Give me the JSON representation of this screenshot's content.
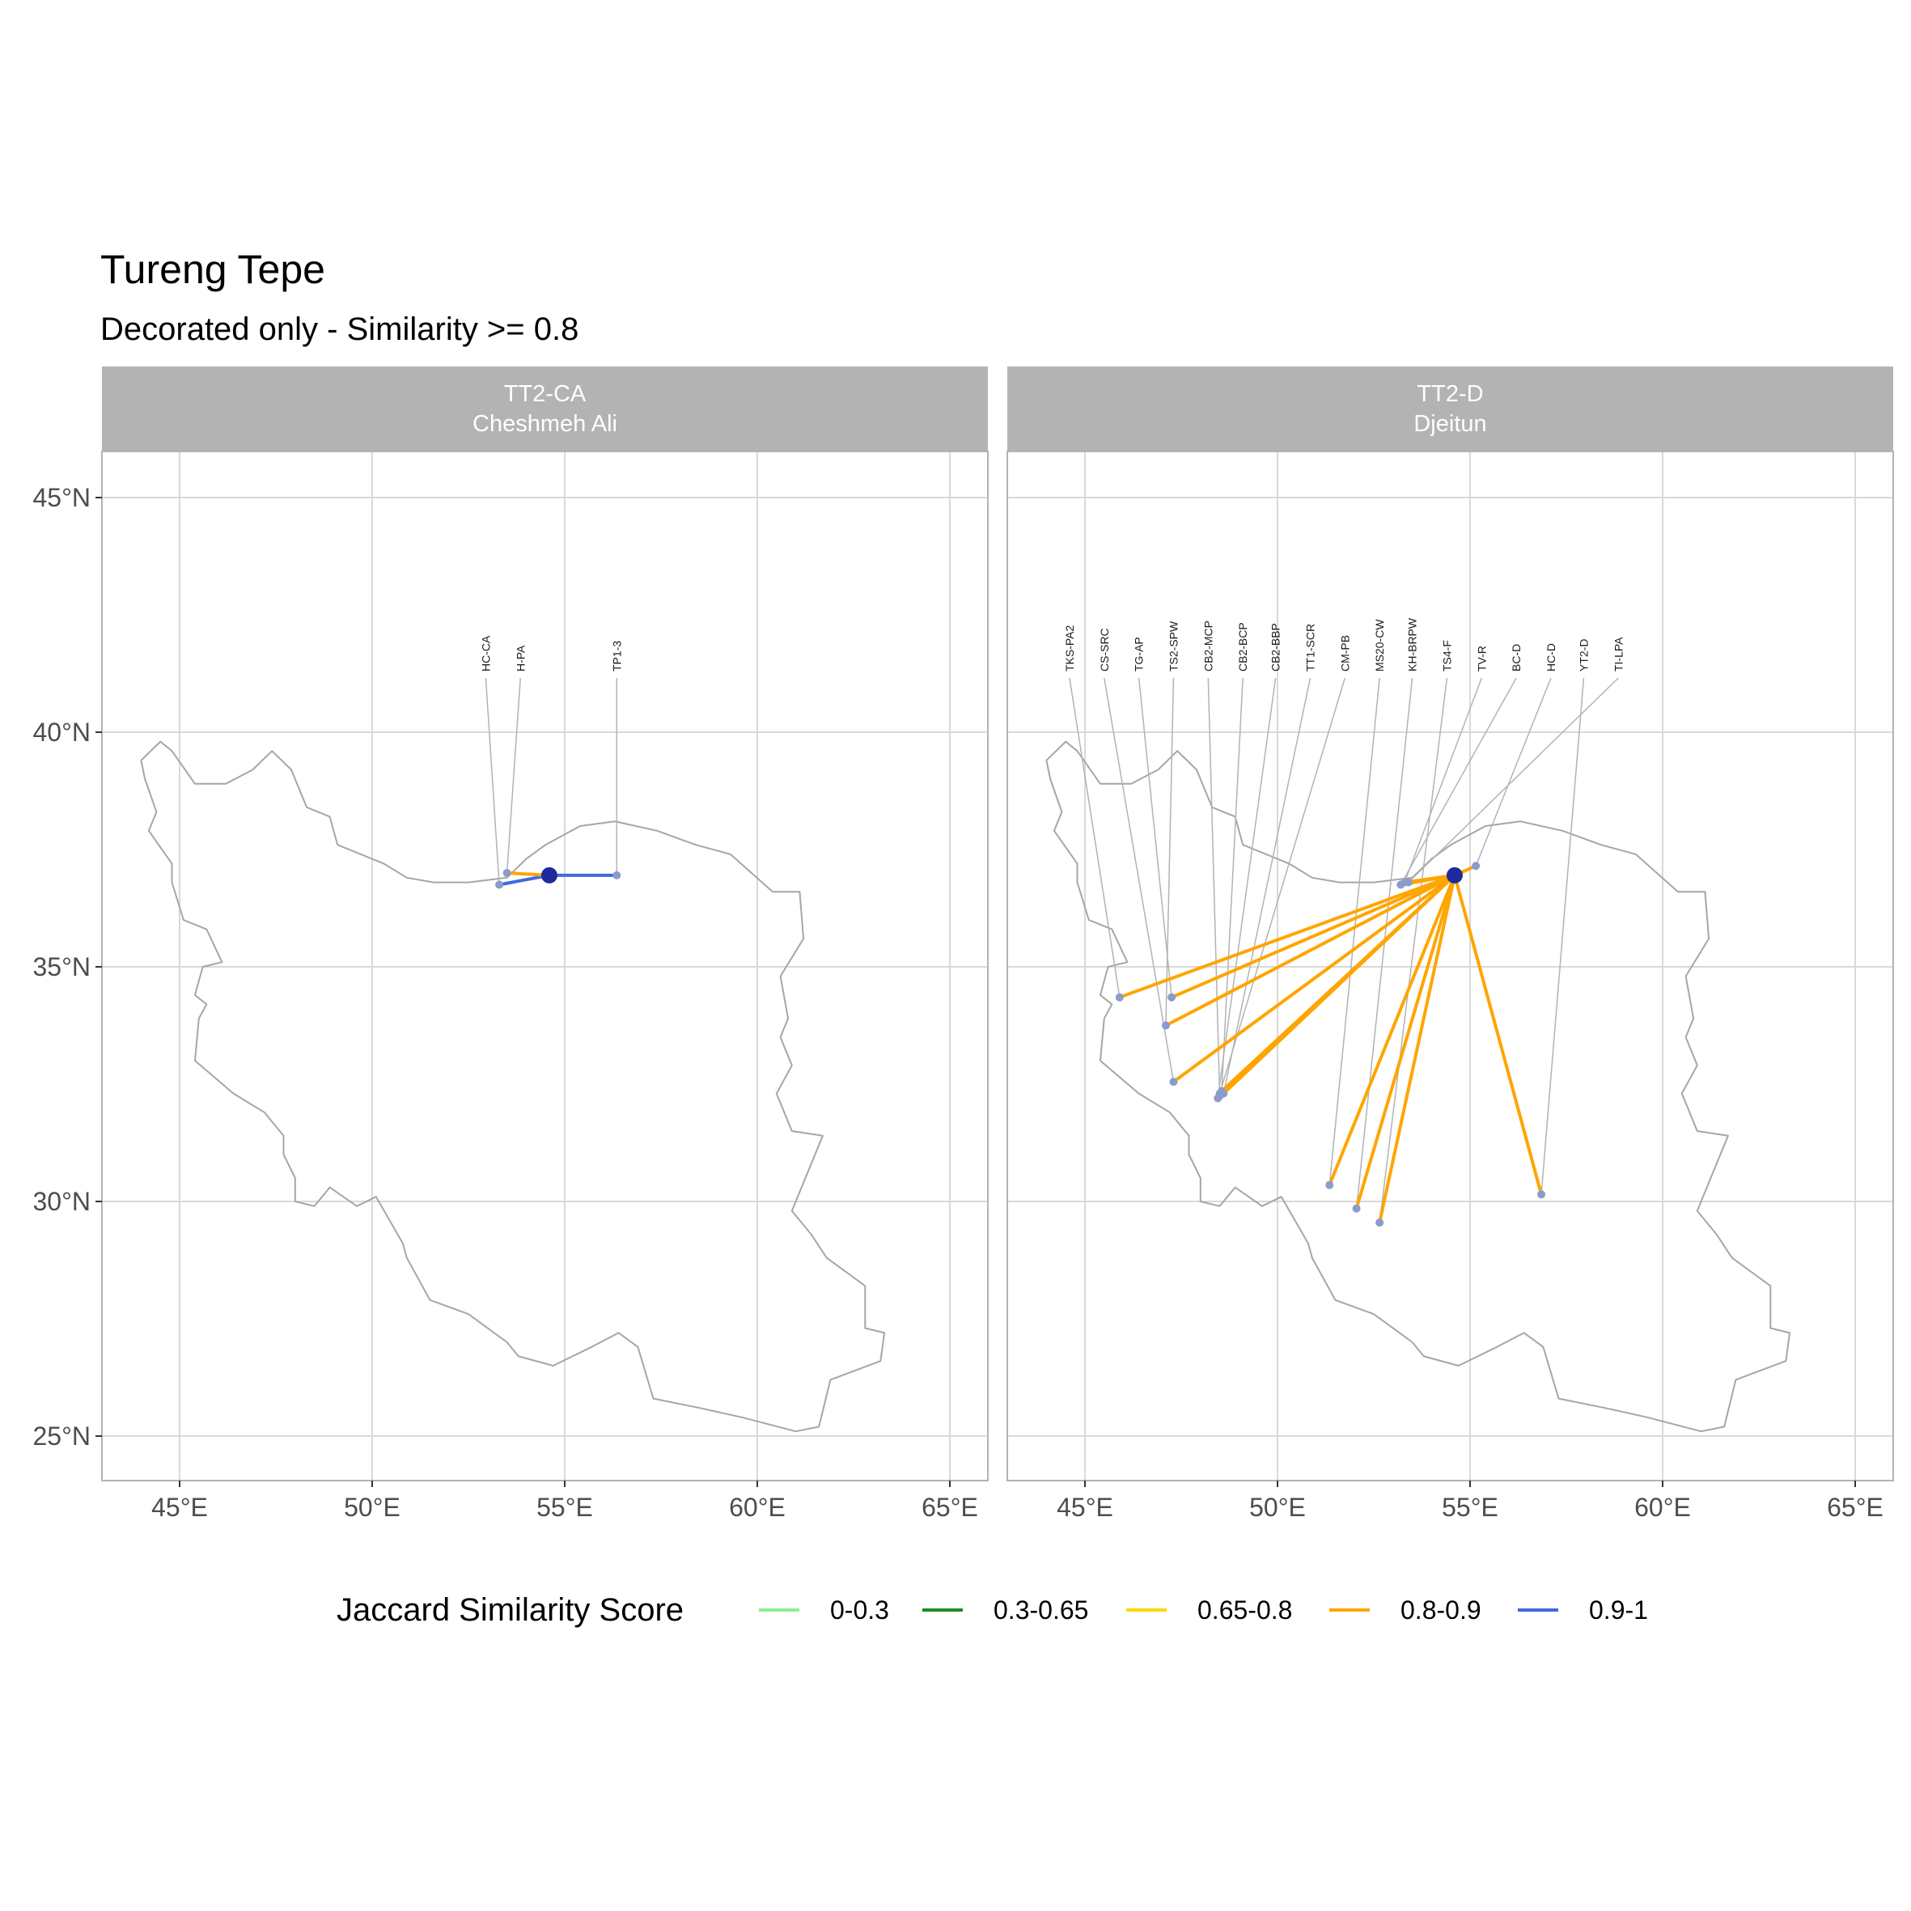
{
  "title": "Tureng Tepe",
  "subtitle": "Decorated only - Similarity >= 0.8",
  "colors": {
    "strip_bg": "#b3b3b3",
    "grid": "#d9d9d9",
    "panel_border": "#b3b3b3",
    "outline": "#a6a6a6",
    "leader": "#b3b3b3",
    "site_point": "#8a9cc9",
    "origin_point": "#1f2a9c"
  },
  "chart_data": {
    "type": "map",
    "origin": {
      "lon": 54.6,
      "lat": 36.95
    },
    "x_ticks": [
      {
        "value": 45,
        "label": "45°E"
      },
      {
        "value": 50,
        "label": "50°E"
      },
      {
        "value": 55,
        "label": "55°E"
      },
      {
        "value": 60,
        "label": "60°E"
      },
      {
        "value": 65,
        "label": "65°E"
      }
    ],
    "y_ticks": [
      {
        "value": 45,
        "label": "45°N"
      },
      {
        "value": 40,
        "label": "40°N"
      },
      {
        "value": 35,
        "label": "35°N"
      },
      {
        "value": 30,
        "label": "30°N"
      },
      {
        "value": 25,
        "label": "25°N"
      }
    ],
    "xlim": [
      43,
      66
    ],
    "ylim": [
      24.2,
      46
    ],
    "outline": [
      [
        44.0,
        39.4
      ],
      [
        44.5,
        39.8
      ],
      [
        44.8,
        39.6
      ],
      [
        45.4,
        38.9
      ],
      [
        46.2,
        38.9
      ],
      [
        46.9,
        39.2
      ],
      [
        47.4,
        39.6
      ],
      [
        47.9,
        39.2
      ],
      [
        48.3,
        38.4
      ],
      [
        48.9,
        38.2
      ],
      [
        49.1,
        37.6
      ],
      [
        50.3,
        37.2
      ],
      [
        50.9,
        36.9
      ],
      [
        51.6,
        36.8
      ],
      [
        52.5,
        36.8
      ],
      [
        53.5,
        36.9
      ],
      [
        54.0,
        37.3
      ],
      [
        54.5,
        37.6
      ],
      [
        55.4,
        38.0
      ],
      [
        56.3,
        38.1
      ],
      [
        57.4,
        37.9
      ],
      [
        58.4,
        37.6
      ],
      [
        59.3,
        37.4
      ],
      [
        60.4,
        36.6
      ],
      [
        61.1,
        36.6
      ],
      [
        61.2,
        35.6
      ],
      [
        60.6,
        34.8
      ],
      [
        60.8,
        33.9
      ],
      [
        60.6,
        33.5
      ],
      [
        60.9,
        32.9
      ],
      [
        60.5,
        32.3
      ],
      [
        60.9,
        31.5
      ],
      [
        61.7,
        31.4
      ],
      [
        60.9,
        29.8
      ],
      [
        61.4,
        29.3
      ],
      [
        61.8,
        28.8
      ],
      [
        62.8,
        28.2
      ],
      [
        62.8,
        27.3
      ],
      [
        63.3,
        27.2
      ],
      [
        63.2,
        26.6
      ],
      [
        61.9,
        26.2
      ],
      [
        61.6,
        25.2
      ],
      [
        61.0,
        25.1
      ],
      [
        59.6,
        25.4
      ],
      [
        58.5,
        25.6
      ],
      [
        57.3,
        25.8
      ],
      [
        56.9,
        26.9
      ],
      [
        56.4,
        27.2
      ],
      [
        55.7,
        26.9
      ],
      [
        54.7,
        26.5
      ],
      [
        53.8,
        26.7
      ],
      [
        53.5,
        27.0
      ],
      [
        52.5,
        27.6
      ],
      [
        51.5,
        27.9
      ],
      [
        50.9,
        28.8
      ],
      [
        50.8,
        29.1
      ],
      [
        50.1,
        30.1
      ],
      [
        49.6,
        29.9
      ],
      [
        48.9,
        30.3
      ],
      [
        48.5,
        29.9
      ],
      [
        48.0,
        30.0
      ],
      [
        48.0,
        30.5
      ],
      [
        47.7,
        31.0
      ],
      [
        47.7,
        31.4
      ],
      [
        47.2,
        31.9
      ],
      [
        46.4,
        32.3
      ],
      [
        45.4,
        33.0
      ],
      [
        45.5,
        33.9
      ],
      [
        45.7,
        34.2
      ],
      [
        45.4,
        34.4
      ],
      [
        45.6,
        35.0
      ],
      [
        46.1,
        35.1
      ],
      [
        45.7,
        35.8
      ],
      [
        45.1,
        36.0
      ],
      [
        44.8,
        36.8
      ],
      [
        44.8,
        37.2
      ],
      [
        44.2,
        37.9
      ],
      [
        44.4,
        38.3
      ],
      [
        44.1,
        39.0
      ],
      [
        44.0,
        39.4
      ]
    ],
    "panels": [
      {
        "strip_line1": "TT2-CA",
        "strip_line2": "Cheshmeh Ali",
        "sites": [
          {
            "label": "HC-CA",
            "lon": 53.3,
            "lat": 36.75,
            "label_lon": 52.95,
            "band": "0.9-1"
          },
          {
            "label": "H-PA",
            "lon": 53.5,
            "lat": 37.0,
            "label_lon": 53.85,
            "band": "0.8-0.9"
          },
          {
            "label": "TP1-3",
            "lon": 56.35,
            "lat": 36.95,
            "label_lon": 56.35,
            "band": "0.9-1"
          }
        ]
      },
      {
        "strip_line1": "TT2-D",
        "strip_line2": "Djeitun",
        "sites": [
          {
            "label": "TKS-PA2",
            "lon": 45.9,
            "lat": 34.35,
            "label_lon": 44.6,
            "band": "0.8-0.9"
          },
          {
            "label": "CS-SRC",
            "lon": 47.3,
            "lat": 32.55,
            "label_lon": 45.5,
            "band": "0.8-0.9"
          },
          {
            "label": "TG-AP",
            "lon": 47.25,
            "lat": 34.35,
            "label_lon": 46.4,
            "band": "0.8-0.9"
          },
          {
            "label": "TS2-SPW",
            "lon": 47.1,
            "lat": 33.75,
            "label_lon": 47.3,
            "band": "0.8-0.9"
          },
          {
            "label": "CB2-MCP",
            "lon": 48.5,
            "lat": 32.25,
            "label_lon": 48.2,
            "band": "0.8-0.9"
          },
          {
            "label": "CB2-BCP",
            "lon": 48.55,
            "lat": 32.35,
            "label_lon": 49.1,
            "band": "0.8-0.9"
          },
          {
            "label": "CB2-BBP",
            "lon": 48.45,
            "lat": 32.2,
            "label_lon": 49.95,
            "band": "0.8-0.9"
          },
          {
            "label": "TT1-SCR",
            "lon": 48.6,
            "lat": 32.3,
            "label_lon": 50.85,
            "band": "0.8-0.9"
          },
          {
            "label": "CM-PB",
            "lon": 48.5,
            "lat": 32.3,
            "label_lon": 51.75,
            "band": "0.8-0.9"
          },
          {
            "label": "MS20-CW",
            "lon": 51.35,
            "lat": 30.35,
            "label_lon": 52.65,
            "band": "0.8-0.9"
          },
          {
            "label": "KH-BRPW",
            "lon": 52.05,
            "lat": 29.85,
            "label_lon": 53.5,
            "band": "0.8-0.9"
          },
          {
            "label": "TS4-F",
            "lon": 52.65,
            "lat": 29.55,
            "label_lon": 54.4,
            "band": "0.8-0.9"
          },
          {
            "label": "TV-R",
            "lon": 53.3,
            "lat": 36.8,
            "label_lon": 55.3,
            "band": "0.8-0.9"
          },
          {
            "label": "BC-D",
            "lon": 53.2,
            "lat": 36.75,
            "label_lon": 56.2,
            "band": "0.8-0.9"
          },
          {
            "label": "HC-D",
            "lon": 55.15,
            "lat": 37.15,
            "label_lon": 57.1,
            "band": "0.8-0.9"
          },
          {
            "label": "YT2-D",
            "lon": 56.85,
            "lat": 30.15,
            "label_lon": 57.95,
            "band": "0.8-0.9"
          },
          {
            "label": "TI-LPA",
            "lon": 53.4,
            "lat": 36.8,
            "label_lon": 58.85,
            "band": "0.8-0.9"
          }
        ]
      }
    ],
    "legend": {
      "title": "Jaccard Similarity Score",
      "items": [
        {
          "label": "0-0.3",
          "color": "#90ee90"
        },
        {
          "label": "0.3-0.65",
          "color": "#228b22"
        },
        {
          "label": "0.65-0.8",
          "color": "#ffd700"
        },
        {
          "label": "0.8-0.9",
          "color": "#ffa500"
        },
        {
          "label": "0.9-1",
          "color": "#4169e1"
        }
      ]
    }
  }
}
